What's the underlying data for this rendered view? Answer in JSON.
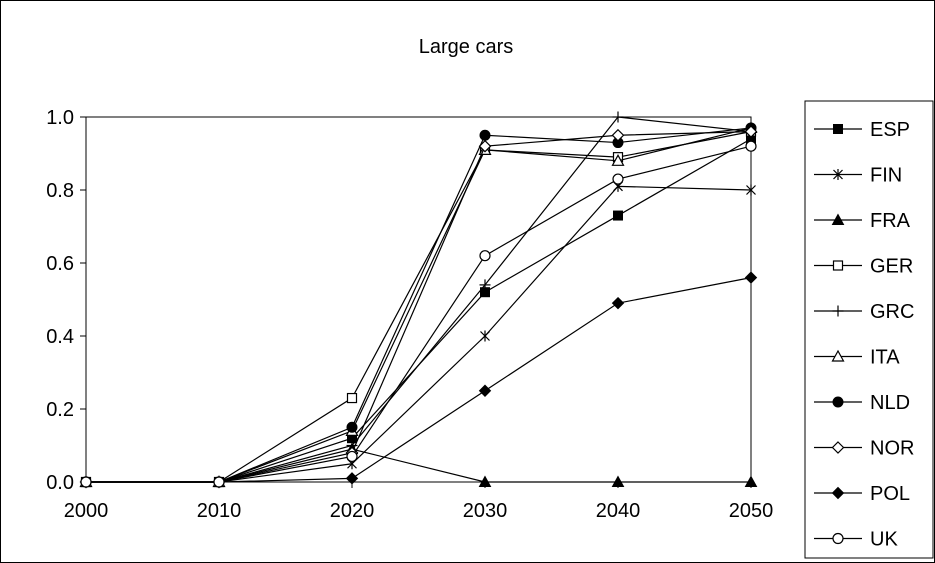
{
  "chart_data": {
    "type": "line",
    "title": "Large cars",
    "xlabel": "",
    "ylabel": "",
    "x": [
      "2000",
      "2010",
      "2020",
      "2030",
      "2040",
      "2050"
    ],
    "ylim": [
      0.0,
      1.0
    ],
    "yticks": [
      "0.0",
      "0.2",
      "0.4",
      "0.6",
      "0.8",
      "1.0"
    ],
    "grid": false,
    "legend_position": "right",
    "series": [
      {
        "name": "ESP",
        "marker": "filled-square",
        "values": [
          0,
          0,
          0.12,
          0.52,
          0.73,
          0.94
        ]
      },
      {
        "name": "FIN",
        "marker": "asterisk",
        "values": [
          0,
          0,
          0.05,
          0.4,
          0.81,
          0.8
        ]
      },
      {
        "name": "FRA",
        "marker": "filled-triangle",
        "values": [
          0,
          0,
          0.09,
          0.0,
          0.0,
          0.0
        ]
      },
      {
        "name": "GER",
        "marker": "open-square",
        "values": [
          0,
          0,
          0.23,
          0.91,
          0.89,
          0.96
        ]
      },
      {
        "name": "GRC",
        "marker": "plus",
        "values": [
          0,
          0,
          0.1,
          0.54,
          1.0,
          0.96
        ]
      },
      {
        "name": "ITA",
        "marker": "open-triangle",
        "values": [
          0,
          0,
          0.14,
          0.91,
          0.88,
          0.97
        ]
      },
      {
        "name": "NLD",
        "marker": "filled-circle",
        "values": [
          0,
          0,
          0.15,
          0.95,
          0.93,
          0.97
        ]
      },
      {
        "name": "NOR",
        "marker": "open-diamond",
        "values": [
          0,
          0,
          0.08,
          0.92,
          0.95,
          0.96
        ]
      },
      {
        "name": "POL",
        "marker": "filled-diamond",
        "values": [
          0,
          0,
          0.01,
          0.25,
          0.49,
          0.56
        ]
      },
      {
        "name": "UK",
        "marker": "open-circle",
        "values": [
          0,
          0,
          0.07,
          0.62,
          0.83,
          0.92
        ]
      }
    ]
  }
}
